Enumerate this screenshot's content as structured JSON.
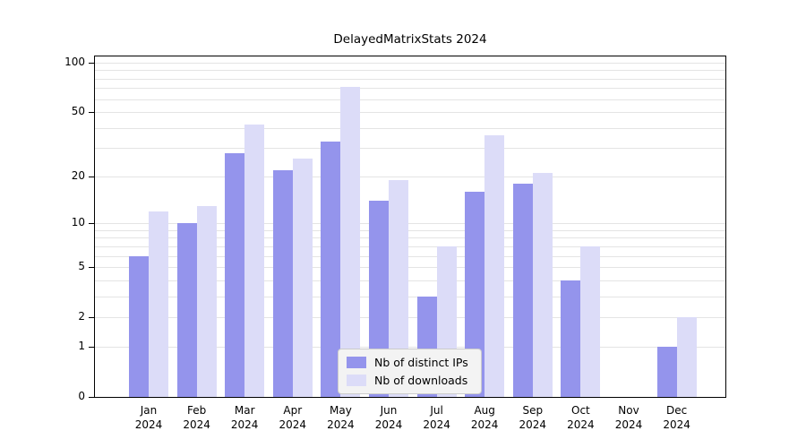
{
  "chart_data": {
    "type": "bar",
    "title": "DelayedMatrixStats 2024",
    "year_label": "2024",
    "categories": [
      "Jan",
      "Feb",
      "Mar",
      "Apr",
      "May",
      "Jun",
      "Jul",
      "Aug",
      "Sep",
      "Oct",
      "Nov",
      "Dec"
    ],
    "series": [
      {
        "name": "Nb of distinct IPs",
        "key": "distinct-ips",
        "color": "#9494ec",
        "values": [
          6,
          10,
          28,
          22,
          33,
          14,
          3,
          16,
          18,
          4,
          0,
          1
        ]
      },
      {
        "name": "Nb of downloads",
        "key": "downloads",
        "color": "#dcdcf8",
        "values": [
          12,
          13,
          42,
          26,
          71,
          19,
          7,
          36,
          21,
          7,
          0,
          2
        ]
      }
    ],
    "y_axis": {
      "scale": "log1p",
      "min": 0,
      "max": 100,
      "ticks": [
        0,
        1,
        2,
        5,
        10,
        20,
        50,
        100
      ],
      "gridlines": [
        1,
        2,
        3,
        4,
        5,
        6,
        7,
        8,
        9,
        10,
        20,
        30,
        40,
        50,
        60,
        70,
        80,
        90,
        100
      ]
    },
    "x_axis": {
      "label": ""
    },
    "legend": {
      "position": "bottom-center"
    },
    "grid": true
  }
}
